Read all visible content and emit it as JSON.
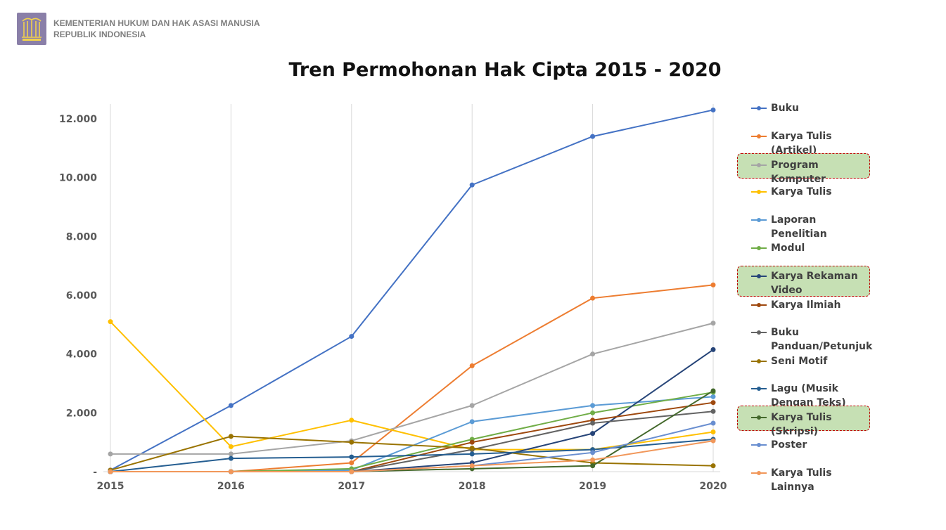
{
  "header": {
    "org_line1": "KEMENTERIAN HUKUM DAN HAK ASASI MANUSIA",
    "org_line2": "REPUBLIK INDONESIA",
    "logo_icon": "ministry-emblem-icon",
    "logo_color": "#8a7fa8"
  },
  "highlight_color": "#c6e0b4",
  "highlight_border": "#c00000",
  "chart_data": {
    "type": "line",
    "title": "Tren Permohonan Hak Cipta 2015 - 2020",
    "xlabel": "",
    "ylabel": "",
    "x": [
      "2015",
      "2016",
      "2017",
      "2018",
      "2019",
      "2020"
    ],
    "ylim": [
      0,
      12500
    ],
    "y_ticks": [
      0,
      2000,
      4000,
      6000,
      8000,
      10000,
      12000
    ],
    "y_tick_labels": [
      "-",
      "2.000",
      "4.000",
      "6.000",
      "8.000",
      "10.000",
      "12.000"
    ],
    "grid": "vertical",
    "legend_position": "right",
    "series": [
      {
        "name": "Buku",
        "color": "#4472c4",
        "values": [
          50,
          2250,
          4600,
          9750,
          11400,
          12300
        ],
        "highlight": false
      },
      {
        "name": "Karya Tulis (Artikel)",
        "color": "#ed7d31",
        "values": [
          0,
          0,
          300,
          3600,
          5900,
          6350
        ],
        "highlight": false
      },
      {
        "name": "Program Komputer",
        "color": "#a5a5a5",
        "values": [
          600,
          600,
          1050,
          2250,
          4000,
          5050
        ],
        "highlight": true
      },
      {
        "name": "Karya Tulis",
        "color": "#ffc000",
        "values": [
          5100,
          850,
          1750,
          750,
          750,
          1350
        ],
        "highlight": false
      },
      {
        "name": "Laporan Penelitian",
        "color": "#5b9bd5",
        "values": [
          0,
          0,
          50,
          1700,
          2250,
          2550
        ],
        "highlight": false
      },
      {
        "name": "Modul",
        "color": "#70ad47",
        "values": [
          0,
          0,
          100,
          1100,
          2000,
          2700
        ],
        "highlight": false
      },
      {
        "name": "Karya Rekaman Video",
        "color": "#264478",
        "values": [
          0,
          0,
          0,
          300,
          1300,
          4150
        ],
        "highlight": true
      },
      {
        "name": "Karya Ilmiah",
        "color": "#9e480e",
        "values": [
          0,
          0,
          0,
          1000,
          1750,
          2350
        ],
        "highlight": false
      },
      {
        "name": "Buku Panduan/Petunjuk",
        "color": "#636363",
        "values": [
          0,
          0,
          0,
          750,
          1650,
          2050
        ],
        "highlight": false
      },
      {
        "name": "Seni Motif",
        "color": "#997300",
        "values": [
          50,
          1200,
          1000,
          800,
          300,
          200
        ],
        "highlight": false
      },
      {
        "name": "Lagu (Musik Dengan Teks)",
        "color": "#255e91",
        "values": [
          0,
          450,
          500,
          600,
          750,
          1100
        ],
        "highlight": false
      },
      {
        "name": "Karya Tulis (Skripsi)",
        "color": "#43682b",
        "values": [
          0,
          0,
          0,
          100,
          200,
          2750
        ],
        "highlight": true
      },
      {
        "name": "Poster",
        "color": "#698ed0",
        "values": [
          0,
          0,
          0,
          200,
          650,
          1650
        ],
        "highlight": false
      },
      {
        "name": "Karya Tulis Lainnya",
        "color": "#f1975a",
        "values": [
          0,
          0,
          0,
          200,
          400,
          1050
        ],
        "highlight": false
      }
    ]
  }
}
